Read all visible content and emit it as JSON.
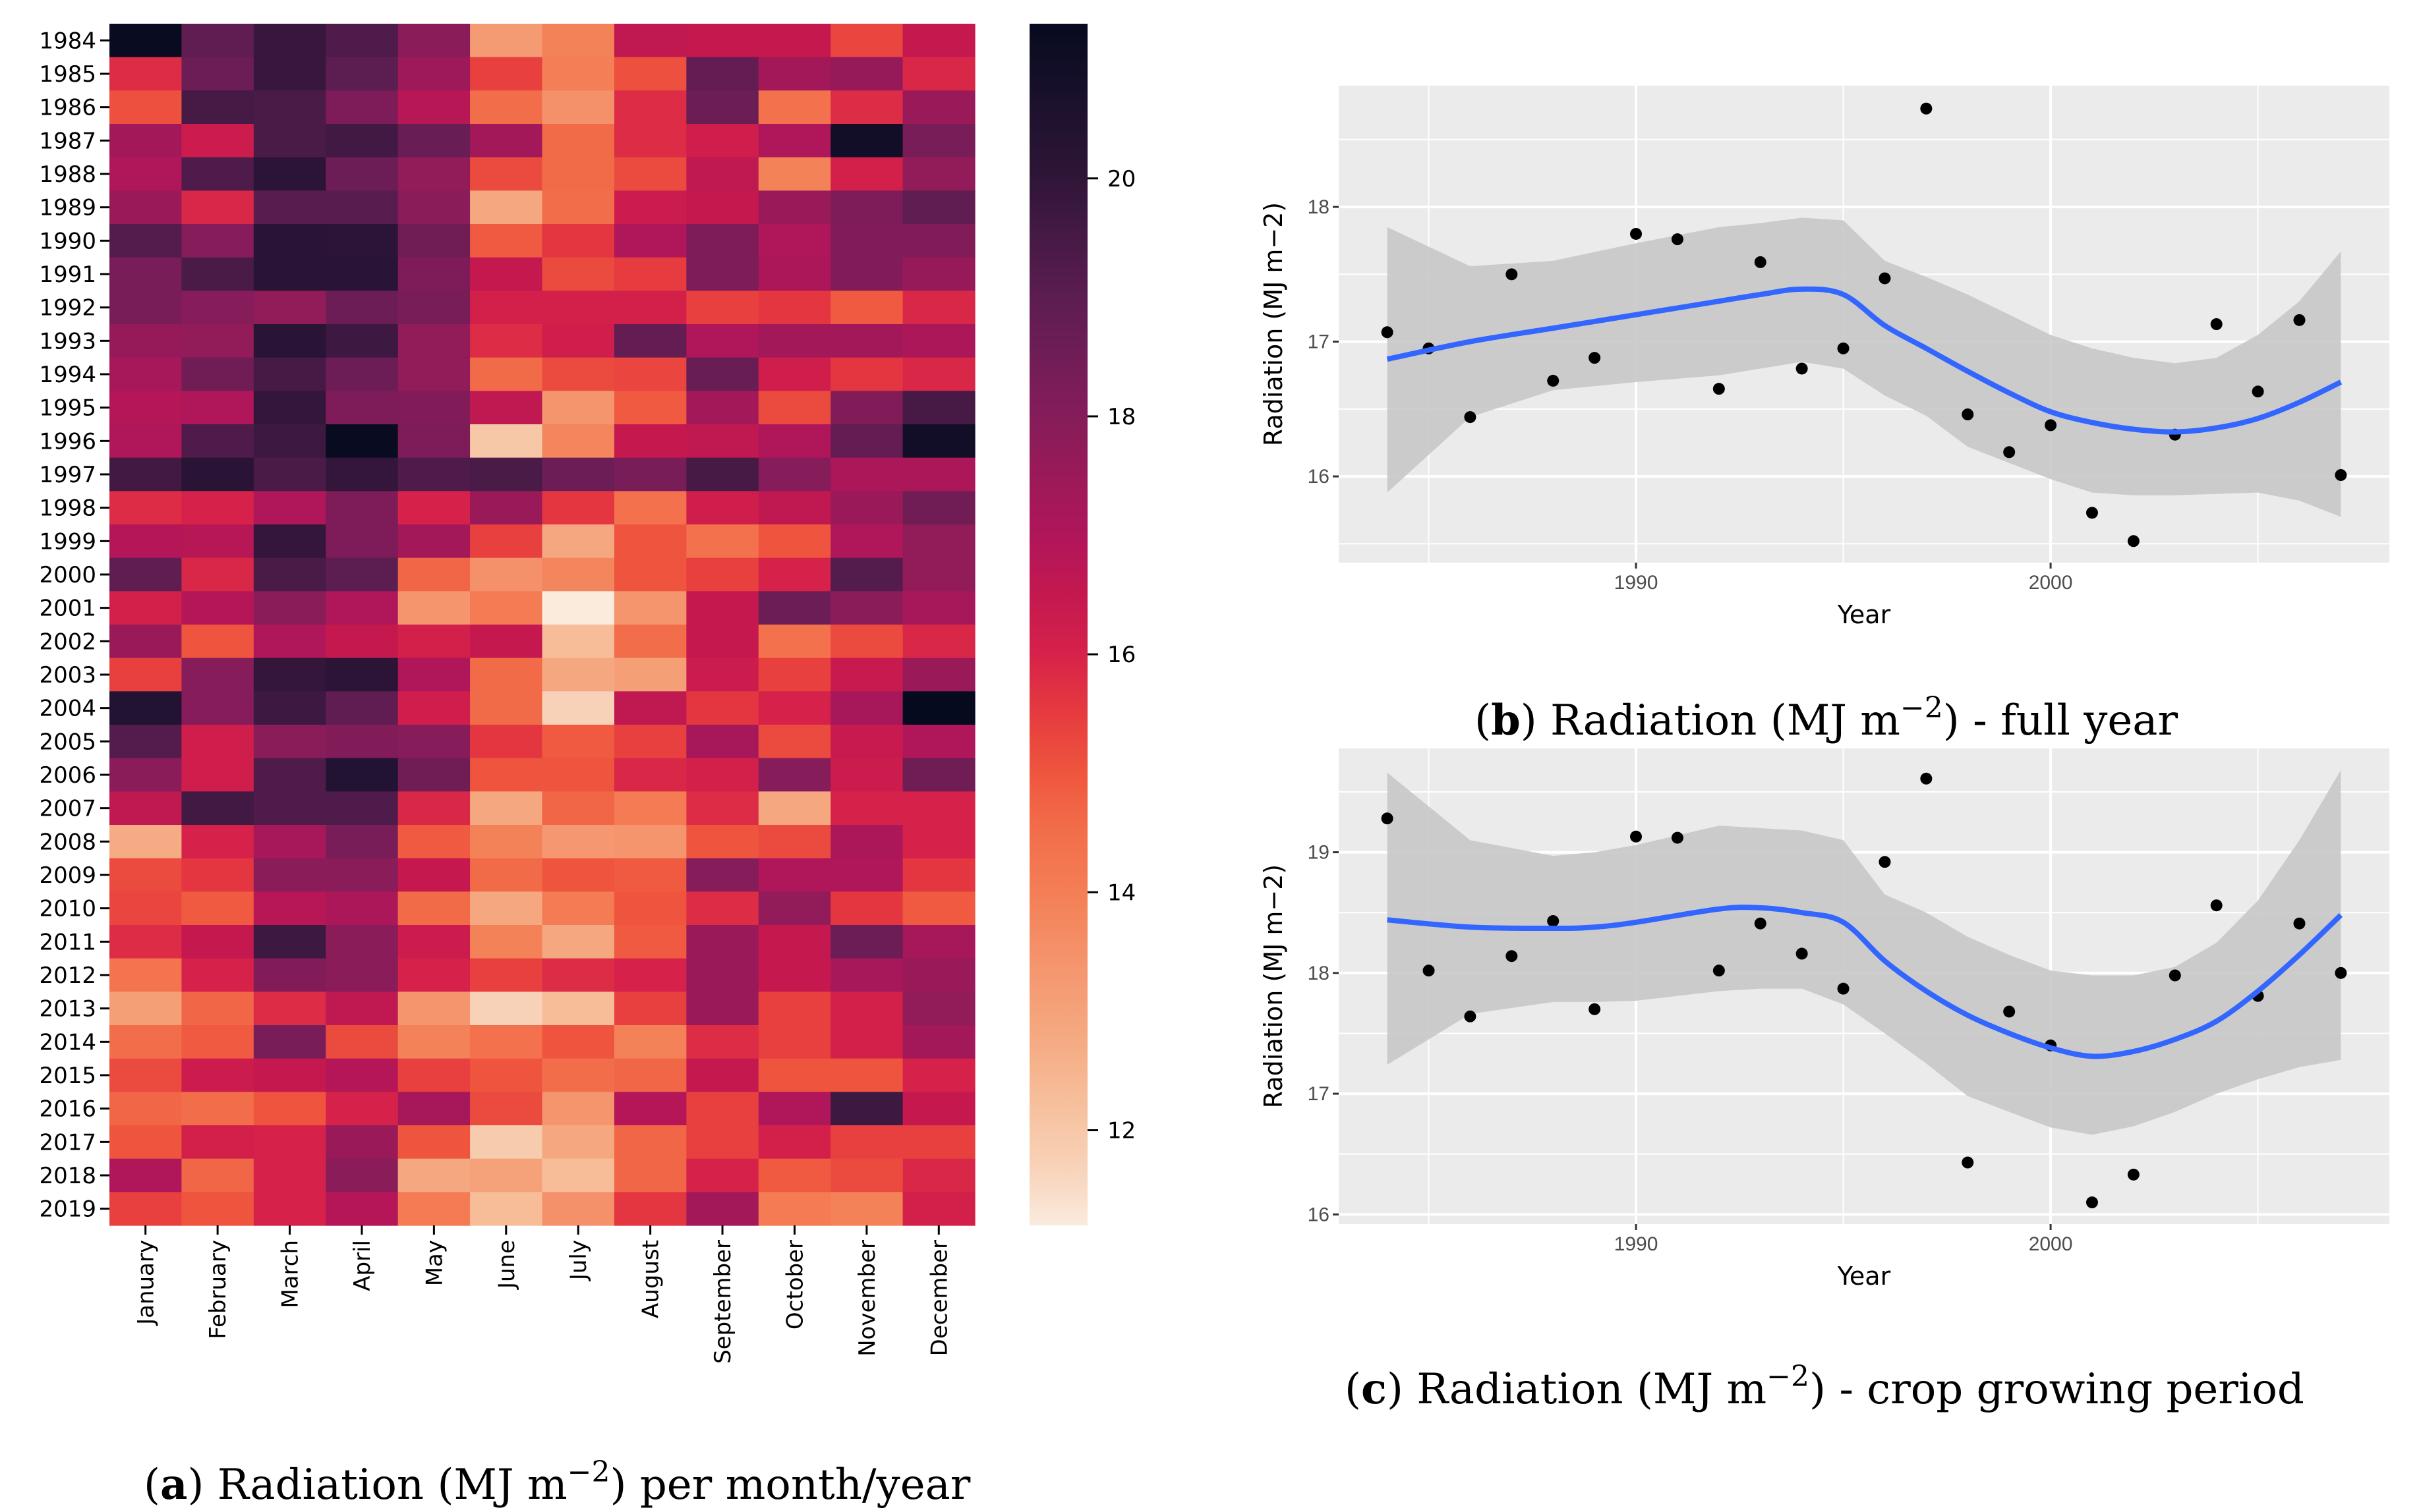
{
  "chart_data": [
    {
      "type": "heatmap",
      "caption": {
        "label": "a",
        "before": "Radiation (MJ m",
        "sup": "−2",
        "after": ") per month/year"
      },
      "rows": [
        "1984",
        "1985",
        "1986",
        "1987",
        "1988",
        "1989",
        "1990",
        "1991",
        "1992",
        "1993",
        "1994",
        "1995",
        "1996",
        "1997",
        "1998",
        "1999",
        "2000",
        "2001",
        "2002",
        "2003",
        "2004",
        "2005",
        "2006",
        "2007",
        "2008",
        "2009",
        "2010",
        "2011",
        "2012",
        "2013",
        "2014",
        "2015",
        "2016",
        "2017",
        "2018",
        "2019"
      ],
      "columns": [
        "January",
        "February",
        "March",
        "April",
        "May",
        "June",
        "July",
        "August",
        "September",
        "October",
        "November",
        "December"
      ],
      "values": [
        [
          21.2,
          18.9,
          19.8,
          19.3,
          17.9,
          13.2,
          13.9,
          16.6,
          16.5,
          16.5,
          15.3,
          16.5
        ],
        [
          15.8,
          18.6,
          19.8,
          19.0,
          17.4,
          15.4,
          14.0,
          15.1,
          18.8,
          17.3,
          17.6,
          15.9
        ],
        [
          15.1,
          19.5,
          19.4,
          18.2,
          16.8,
          14.5,
          13.5,
          15.8,
          18.6,
          14.4,
          15.8,
          17.5
        ],
        [
          17.3,
          16.3,
          19.4,
          19.6,
          18.7,
          17.3,
          14.6,
          15.8,
          16.2,
          17.0,
          20.9,
          18.3
        ],
        [
          17.0,
          19.3,
          20.1,
          18.6,
          17.7,
          15.2,
          14.6,
          15.2,
          16.6,
          13.9,
          16.1,
          17.7
        ],
        [
          17.5,
          15.9,
          19.1,
          19.1,
          17.9,
          12.8,
          14.5,
          16.3,
          16.5,
          17.5,
          18.2,
          18.9
        ],
        [
          19.2,
          18.0,
          20.2,
          20.1,
          18.5,
          14.9,
          15.6,
          17.0,
          18.2,
          17.0,
          18.1,
          18.1
        ],
        [
          18.3,
          19.4,
          20.2,
          20.2,
          18.2,
          16.5,
          15.2,
          15.5,
          18.2,
          17.1,
          18.1,
          17.6
        ],
        [
          18.3,
          18.0,
          17.7,
          18.6,
          18.3,
          16.1,
          16.1,
          16.1,
          15.4,
          15.6,
          14.9,
          15.9
        ],
        [
          17.6,
          17.7,
          20.2,
          19.7,
          17.7,
          15.8,
          16.2,
          18.8,
          17.0,
          17.3,
          17.3,
          17.1
        ],
        [
          17.2,
          18.5,
          19.5,
          18.6,
          17.7,
          14.6,
          15.2,
          15.3,
          18.7,
          16.2,
          15.6,
          15.9
        ],
        [
          16.9,
          17.0,
          19.9,
          18.2,
          18.1,
          16.6,
          13.4,
          14.9,
          17.3,
          15.2,
          18.1,
          19.5
        ],
        [
          17.0,
          19.3,
          19.7,
          21.2,
          18.2,
          12.0,
          13.8,
          16.5,
          16.6,
          17.0,
          18.8,
          20.9
        ],
        [
          19.6,
          20.2,
          19.4,
          19.9,
          19.3,
          19.4,
          18.6,
          18.3,
          19.5,
          18.0,
          17.1,
          17.1
        ],
        [
          15.8,
          16.0,
          17.0,
          18.2,
          16.0,
          17.5,
          15.6,
          14.4,
          16.2,
          16.6,
          17.5,
          18.5
        ],
        [
          16.9,
          16.8,
          19.9,
          18.2,
          17.3,
          15.4,
          12.8,
          15.0,
          14.4,
          15.0,
          17.0,
          17.7
        ],
        [
          18.9,
          15.9,
          19.4,
          19.0,
          14.7,
          13.5,
          13.8,
          15.0,
          15.4,
          16.0,
          19.2,
          17.7
        ],
        [
          16.1,
          16.9,
          17.9,
          17.0,
          13.4,
          14.1,
          11.2,
          13.4,
          16.5,
          18.6,
          17.9,
          17.2
        ],
        [
          17.5,
          15.0,
          17.0,
          16.5,
          16.1,
          16.5,
          12.3,
          14.5,
          16.5,
          14.4,
          15.2,
          15.9
        ],
        [
          15.4,
          18.0,
          19.9,
          20.1,
          17.0,
          14.6,
          12.8,
          13.1,
          16.3,
          15.4,
          16.4,
          17.5
        ],
        [
          20.4,
          18.0,
          19.7,
          18.9,
          16.2,
          14.6,
          11.7,
          16.6,
          15.6,
          16.0,
          17.2,
          21.3
        ],
        [
          19.2,
          16.2,
          17.9,
          18.1,
          18.0,
          15.6,
          14.9,
          15.4,
          17.2,
          15.2,
          16.4,
          17.0
        ],
        [
          17.9,
          16.2,
          19.3,
          20.4,
          18.5,
          15.0,
          15.0,
          15.9,
          16.1,
          18.0,
          16.3,
          18.5
        ],
        [
          16.6,
          19.6,
          19.3,
          19.3,
          15.9,
          12.8,
          14.7,
          14.1,
          15.8,
          12.8,
          16.0,
          16.0
        ],
        [
          12.7,
          16.0,
          17.2,
          18.3,
          14.9,
          13.9,
          13.3,
          13.4,
          15.0,
          15.2,
          17.1,
          16.0
        ],
        [
          15.2,
          15.6,
          17.9,
          17.9,
          16.5,
          14.6,
          15.0,
          14.9,
          18.0,
          17.0,
          17.0,
          15.6
        ],
        [
          15.3,
          14.9,
          16.8,
          17.1,
          14.6,
          12.8,
          14.1,
          15.0,
          15.8,
          17.7,
          15.6,
          14.9
        ],
        [
          15.8,
          16.5,
          19.7,
          17.9,
          16.3,
          13.9,
          12.8,
          14.9,
          17.5,
          16.5,
          18.6,
          17.2
        ],
        [
          14.3,
          16.0,
          18.1,
          17.9,
          16.0,
          15.4,
          15.8,
          16.0,
          17.5,
          16.5,
          17.2,
          17.5
        ],
        [
          13.1,
          14.7,
          15.8,
          16.6,
          13.4,
          11.7,
          12.3,
          15.4,
          17.5,
          15.4,
          16.1,
          17.7
        ],
        [
          14.5,
          14.9,
          18.3,
          15.2,
          13.9,
          14.4,
          15.0,
          13.9,
          15.8,
          15.4,
          16.1,
          17.3
        ],
        [
          15.2,
          16.3,
          16.5,
          16.9,
          15.4,
          15.0,
          14.5,
          14.7,
          16.5,
          15.0,
          15.0,
          16.0
        ],
        [
          14.7,
          14.5,
          15.0,
          16.0,
          17.2,
          15.2,
          13.4,
          16.9,
          15.4,
          17.0,
          19.7,
          16.5
        ],
        [
          15.0,
          16.1,
          16.0,
          17.5,
          15.0,
          11.9,
          12.8,
          14.7,
          15.4,
          16.1,
          15.4,
          15.4
        ],
        [
          17.0,
          14.7,
          16.0,
          17.9,
          12.8,
          13.0,
          12.3,
          14.7,
          16.0,
          14.9,
          15.2,
          15.9
        ],
        [
          15.4,
          15.0,
          16.0,
          16.9,
          14.1,
          12.3,
          13.5,
          15.6,
          17.3,
          14.1,
          13.9,
          16.1
        ]
      ],
      "colorbar": {
        "range": [
          11.2,
          21.3
        ],
        "ticks": [
          "12",
          "14",
          "16",
          "18",
          "20"
        ]
      },
      "colorscale": [
        [
          11.2,
          "#faebdd"
        ],
        [
          11.7,
          "#f8d2b8"
        ],
        [
          12.3,
          "#f6bd98"
        ],
        [
          12.8,
          "#f5a880"
        ],
        [
          13.4,
          "#f5956e"
        ],
        [
          14.0,
          "#f47e55"
        ],
        [
          14.6,
          "#f26b48"
        ],
        [
          15.0,
          "#ef553e"
        ],
        [
          15.5,
          "#e63b3f"
        ],
        [
          16.0,
          "#d6224a"
        ],
        [
          16.5,
          "#c4184f"
        ],
        [
          17.0,
          "#b0165a"
        ],
        [
          17.5,
          "#9a1a59"
        ],
        [
          18.0,
          "#861c5a"
        ],
        [
          18.5,
          "#701d56"
        ],
        [
          19.0,
          "#5c1d51"
        ],
        [
          19.5,
          "#461a45"
        ],
        [
          20.0,
          "#2f1538"
        ],
        [
          20.5,
          "#1f1230"
        ],
        [
          21.3,
          "#060a1f"
        ]
      ]
    },
    {
      "type": "scatter",
      "caption": {
        "label": "b",
        "before": "Radiation (MJ m",
        "sup": "−2",
        "after": ") - full year"
      },
      "xlabel": "Year",
      "ylabel": "Radiation (MJ m−2)",
      "xlim": [
        1982.83,
        2008.17
      ],
      "ylim": [
        15.36,
        18.9
      ],
      "xticks": [
        "1990",
        "2000"
      ],
      "yticks": [
        "16",
        "17",
        "18"
      ],
      "x": [
        1984,
        1985,
        1986,
        1987,
        1988,
        1989,
        1990,
        1991,
        1992,
        1993,
        1994,
        1995,
        1996,
        1997,
        1998,
        1999,
        2000,
        2001,
        2002,
        2003,
        2004,
        2005,
        2006,
        2007
      ],
      "y": [
        17.07,
        16.95,
        16.44,
        17.5,
        16.71,
        16.88,
        17.8,
        17.76,
        16.65,
        17.59,
        16.8,
        16.95,
        17.47,
        18.73,
        16.46,
        16.18,
        16.38,
        15.73,
        15.52,
        16.31,
        17.13,
        16.63,
        17.16,
        16.01
      ],
      "smooth": {
        "x": [
          1984,
          1986,
          1988,
          1990,
          1992,
          1993,
          1994,
          1995,
          1996,
          1997,
          1998,
          1999,
          2000,
          2001,
          2002,
          2003,
          2004,
          2005,
          2006,
          2007
        ],
        "y": [
          16.87,
          17.0,
          17.1,
          17.2,
          17.3,
          17.35,
          17.39,
          17.35,
          17.12,
          16.95,
          16.78,
          16.62,
          16.48,
          16.4,
          16.35,
          16.33,
          16.36,
          16.43,
          16.55,
          16.7
        ],
        "upper": [
          17.85,
          17.56,
          17.6,
          17.73,
          17.85,
          17.88,
          17.92,
          17.9,
          17.6,
          17.48,
          17.35,
          17.2,
          17.05,
          16.95,
          16.88,
          16.84,
          16.88,
          17.05,
          17.3,
          17.67
        ],
        "lower": [
          15.88,
          16.44,
          16.64,
          16.7,
          16.75,
          16.8,
          16.85,
          16.8,
          16.6,
          16.45,
          16.22,
          16.1,
          15.98,
          15.88,
          15.86,
          15.86,
          15.87,
          15.88,
          15.82,
          15.7
        ]
      },
      "colors": {
        "panel": "#ebebeb",
        "grid": "#ffffff",
        "line": "#3366ff",
        "band": "#c8c8c8",
        "point": "#000000"
      }
    },
    {
      "type": "scatter",
      "caption": {
        "label": "c",
        "before": "Radiation (MJ m",
        "sup": "−2",
        "after": ") - crop growing period"
      },
      "xlabel": "Year",
      "ylabel": "Radiation (MJ m−2)",
      "xlim": [
        1982.83,
        2008.17
      ],
      "ylim": [
        15.92,
        19.86
      ],
      "xticks": [
        "1990",
        "2000"
      ],
      "yticks": [
        "16",
        "17",
        "18",
        "19"
      ],
      "x": [
        1984,
        1985,
        1986,
        1987,
        1988,
        1989,
        1990,
        1991,
        1992,
        1993,
        1994,
        1995,
        1996,
        1997,
        1998,
        1999,
        2000,
        2001,
        2002,
        2003,
        2004,
        2005,
        2006,
        2007
      ],
      "y": [
        19.28,
        18.02,
        17.64,
        18.14,
        18.43,
        17.7,
        19.13,
        19.12,
        18.02,
        18.41,
        18.16,
        17.87,
        18.92,
        19.61,
        16.43,
        17.68,
        17.4,
        16.1,
        16.33,
        17.98,
        18.56,
        17.81,
        18.41,
        18.0
      ],
      "smooth": {
        "x": [
          1984,
          1986,
          1988,
          1989,
          1990,
          1992,
          1993,
          1994,
          1995,
          1996,
          1997,
          1998,
          1999,
          2000,
          2001,
          2002,
          2003,
          2004,
          2005,
          2006,
          2007
        ],
        "y": [
          18.44,
          18.38,
          18.37,
          18.38,
          18.42,
          18.53,
          18.54,
          18.5,
          18.42,
          18.1,
          17.85,
          17.65,
          17.5,
          17.38,
          17.31,
          17.35,
          17.45,
          17.6,
          17.85,
          18.15,
          18.48
        ],
        "upper": [
          19.66,
          19.1,
          18.97,
          19.0,
          19.06,
          19.22,
          19.2,
          19.18,
          19.1,
          18.65,
          18.5,
          18.3,
          18.15,
          18.02,
          17.98,
          17.98,
          18.05,
          18.25,
          18.6,
          19.1,
          19.68
        ],
        "lower": [
          17.24,
          17.66,
          17.76,
          17.76,
          17.77,
          17.85,
          17.87,
          17.87,
          17.74,
          17.5,
          17.25,
          16.98,
          16.85,
          16.72,
          16.66,
          16.73,
          16.85,
          17.0,
          17.12,
          17.22,
          17.28
        ]
      },
      "colors": {
        "panel": "#ebebeb",
        "grid": "#ffffff",
        "line": "#3366ff",
        "band": "#c8c8c8",
        "point": "#000000"
      }
    }
  ]
}
